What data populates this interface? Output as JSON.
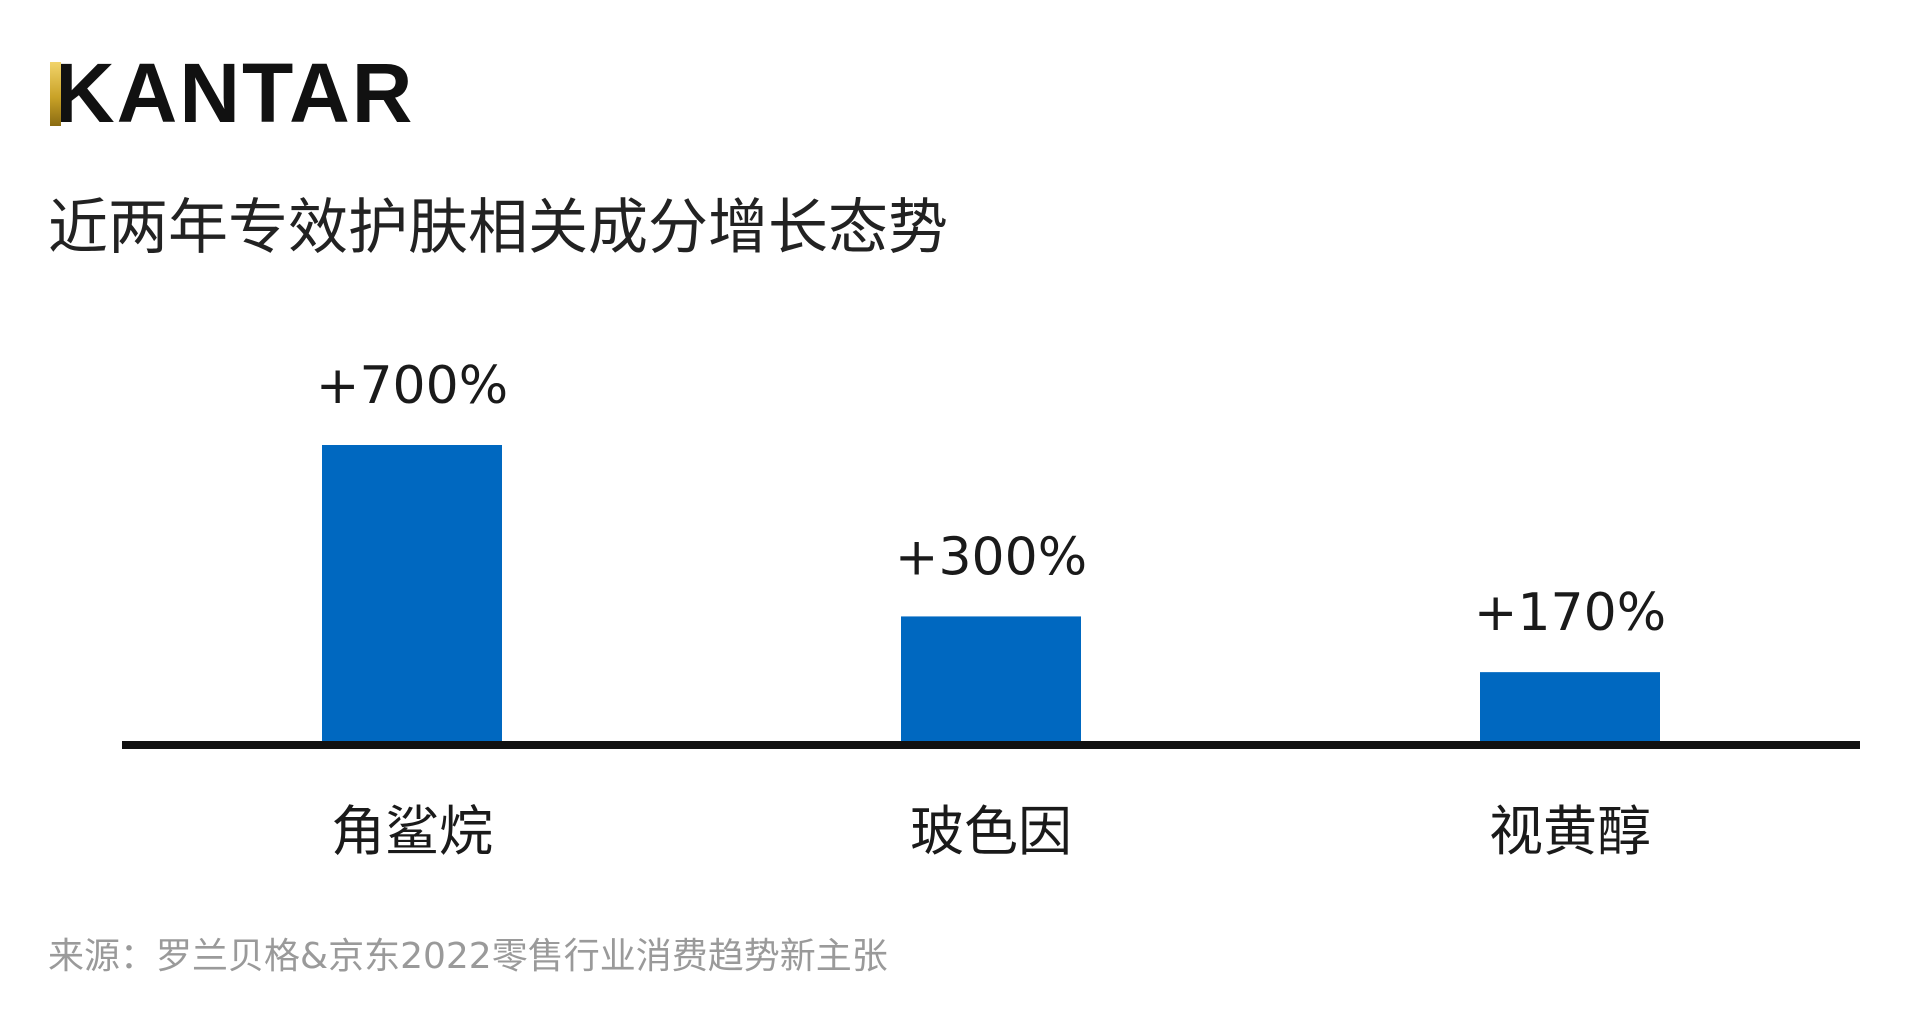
{
  "brand": {
    "name": "KANTAR",
    "accent_color": "#C9A227"
  },
  "chart_data": {
    "type": "bar",
    "title": "近两年专效护肤相关成分增长态势",
    "categories": [
      "角鲨烷",
      "玻色因",
      "视黄醇"
    ],
    "values": [
      700,
      300,
      170
    ],
    "value_labels": [
      "+700%",
      "+300%",
      "+170%"
    ],
    "bar_color": "#0068C0",
    "xlabel": "",
    "ylabel": "",
    "grid": false,
    "legend": "none"
  },
  "source_note": "来源：罗兰贝格&京东2022零售行业消费趋势新主张"
}
